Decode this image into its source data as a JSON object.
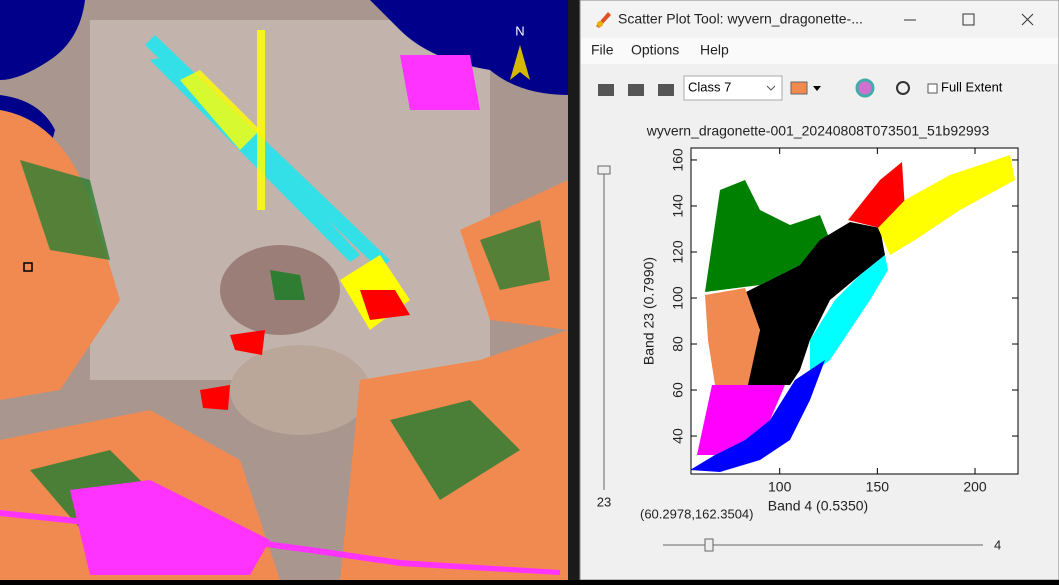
{
  "image": {
    "north_label": "N"
  },
  "window": {
    "title": "Scatter Plot Tool: wyvern_dragonette-...",
    "menu": [
      "File",
      "Options",
      "Help"
    ],
    "class_select": "Class 7",
    "checkbox_label": "Full Extent",
    "vertical_slider_label": "23",
    "horizontal_slider_label": "4",
    "cursor_coordinates": "(60.2978,162.3504)"
  },
  "chart_data": {
    "type": "scatter",
    "title": "wyvern_dragonette-001_20240808T073501_51b92993",
    "x_label": "Band 4 (0.5350)",
    "y_label": "Band 23 (0.7990)",
    "xlim": [
      54.6,
      222
    ],
    "ylim": [
      23.5,
      165.2
    ],
    "xticks": [
      100,
      150,
      200
    ],
    "yticks": [
      40,
      60,
      80,
      100,
      120,
      140,
      160
    ]
  }
}
